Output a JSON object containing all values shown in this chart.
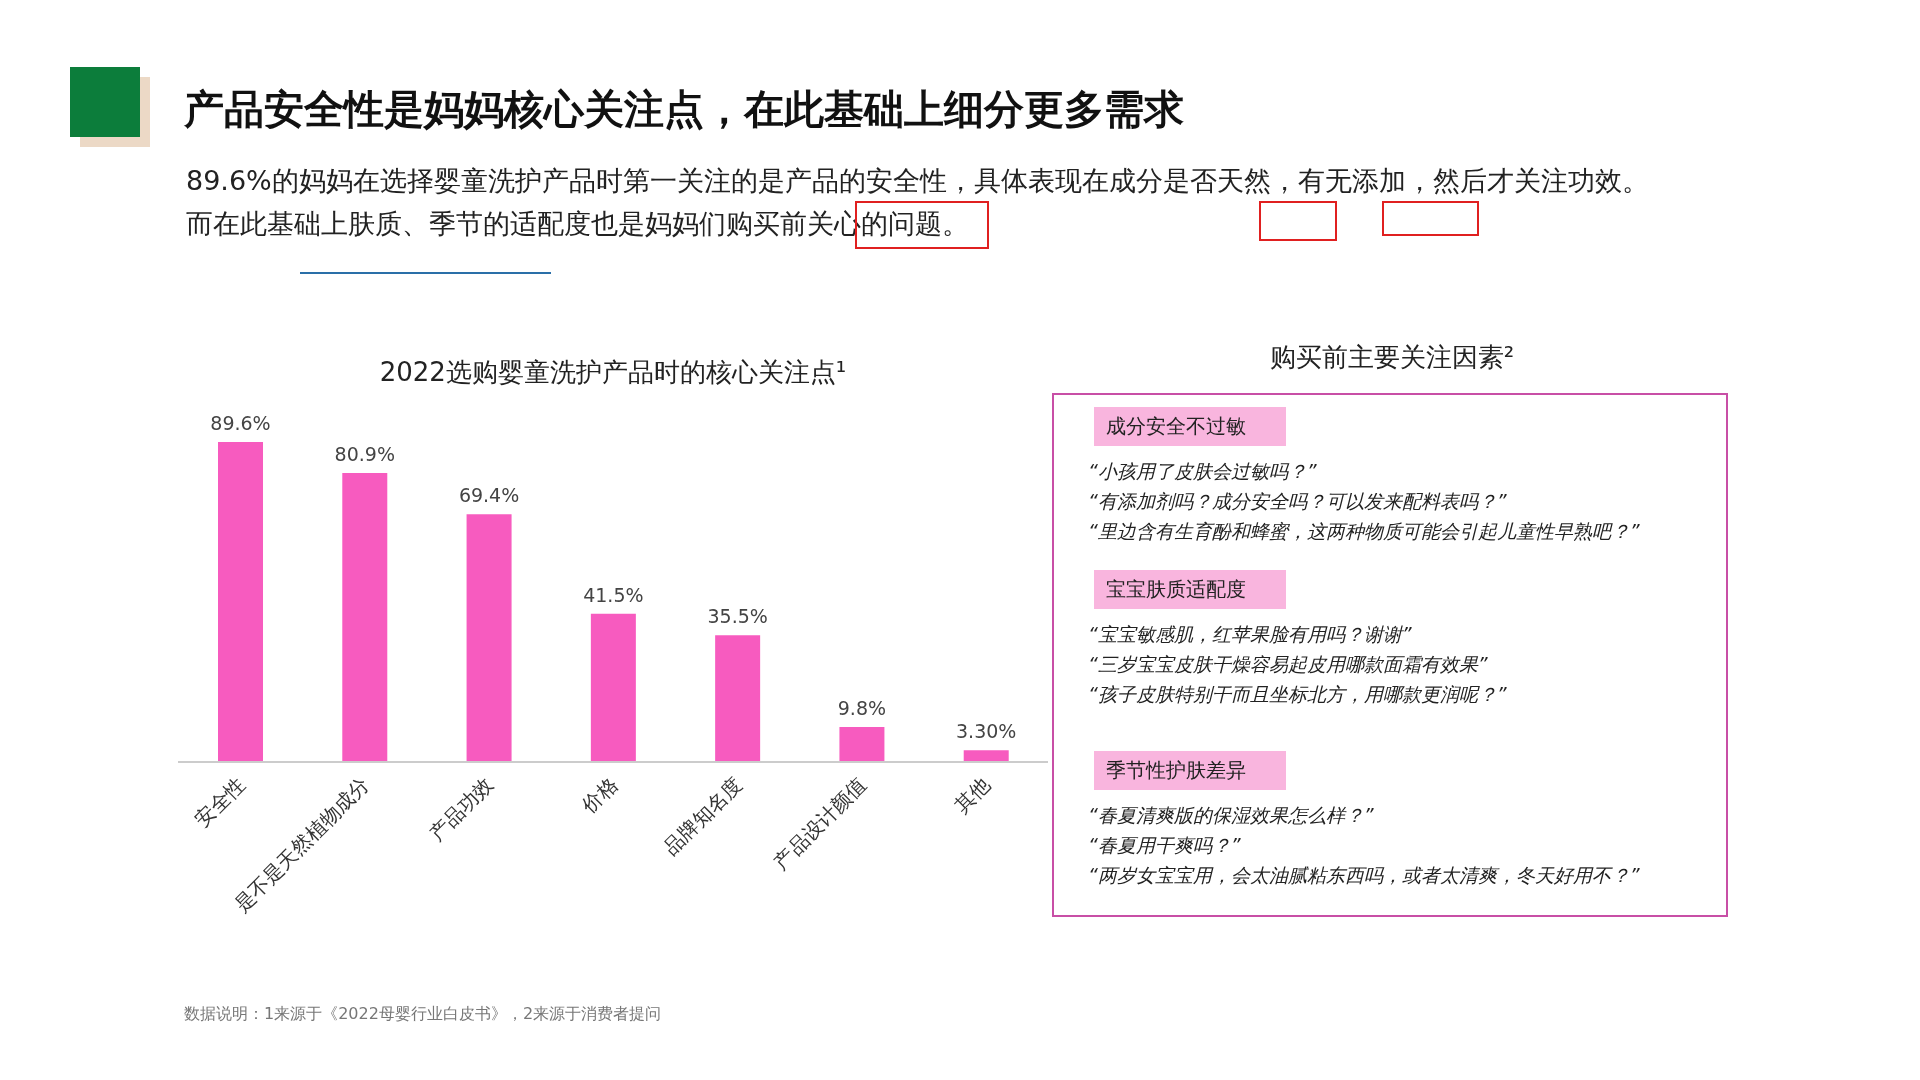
{
  "chart_data": [
    {
      "type": "other",
      "title": "产品安全性是妈妈核心关注点，在此基础上细分更多需求",
      "annotations": [
        "89.6%的妈妈在选择婴童洗护产品时第一关注的是产品的安全性，具体表现在成分是否天然，有无添加，然后才关注功效。",
        "而在此基础上肤质、季节的适配度也是妈妈们购买前关心的问题。",
        "数据说明：1来源于《2022母婴行业白皮书》，2来源于消费者提问"
      ]
    },
    {
      "type": "bar",
      "title": "2022选购婴童洗护产品时的核心关注点¹",
      "categories": [
        "安全性",
        "是不是天然植物成分",
        "产品功效",
        "价格",
        "品牌知名度",
        "产品设计颜值",
        "其他"
      ],
      "values": [
        89.6,
        80.9,
        69.4,
        41.5,
        35.5,
        9.8,
        3.3
      ],
      "value_labels": [
        "89.6%",
        "80.9%",
        "69.4%",
        "41.5%",
        "35.5%",
        "9.8%",
        "3.30%"
      ],
      "color": "#f75bbf"
    },
    {
      "type": "other",
      "title": "购买前主要关注因素²",
      "categories": [
        "成分安全不过敏",
        "宝宝肤质适配度",
        "季节性护肤差异"
      ],
      "annotations": [
        "“小孩用了皮肤会过敏吗？”",
        "“有添加剂吗？成分安全吗？可以发来配料表吗？”",
        "“里边含有生育酚和蜂蜜，这两种物质可能会引起儿童性早熟吧？”",
        "“宝宝敏感肌，红苹果脸有用吗？谢谢”",
        "“三岁宝宝皮肤干燥容易起皮用哪款面霜有效果”",
        "“孩子皮肤特别干而且坐标北方，用哪款更润呢？”",
        "“春夏清爽版的保湿效果怎么样？”",
        "“春夏用干爽吗？”",
        "“两岁女宝宝用，会太油腻粘东西吗，或者太清爽，冬天好用不？”"
      ]
    }
  ]
}
